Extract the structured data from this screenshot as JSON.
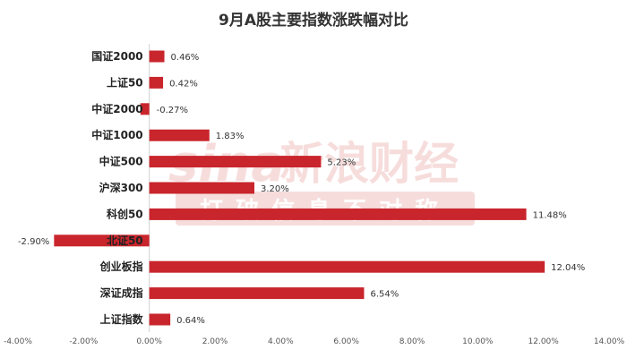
{
  "chart_data": {
    "type": "bar",
    "orientation": "horizontal",
    "title": "9月A股主要指数涨跌幅对比",
    "categories": [
      "国证2000",
      "上证50",
      "中证2000",
      "中证1000",
      "中证500",
      "沪深300",
      "科创50",
      "北证50",
      "创业板指",
      "深证成指",
      "上证指数"
    ],
    "values": [
      0.46,
      0.42,
      -0.27,
      1.83,
      5.23,
      3.2,
      11.48,
      -2.9,
      12.04,
      6.54,
      0.64
    ],
    "value_labels": [
      "0.46%",
      "0.42%",
      "-0.27%",
      "1.83%",
      "5.23%",
      "3.20%",
      "11.48%",
      "-2.90%",
      "12.04%",
      "6.54%",
      "0.64%"
    ],
    "xlim": [
      -4,
      14
    ],
    "x_ticks": [
      -4,
      -2,
      0,
      2,
      4,
      6,
      8,
      10,
      12,
      14
    ],
    "x_tick_labels": [
      "-4.00%",
      "-2.00%",
      "0.00%",
      "2.00%",
      "4.00%",
      "6.00%",
      "8.00%",
      "10.00%",
      "12.00%",
      "14.00%"
    ],
    "bar_color": "#c9252c",
    "grid": false,
    "legend": "none"
  },
  "watermark": {
    "brand": "sina",
    "name": "新浪财经",
    "slogan": "打破信息不对称",
    "color": "#c9302c"
  }
}
